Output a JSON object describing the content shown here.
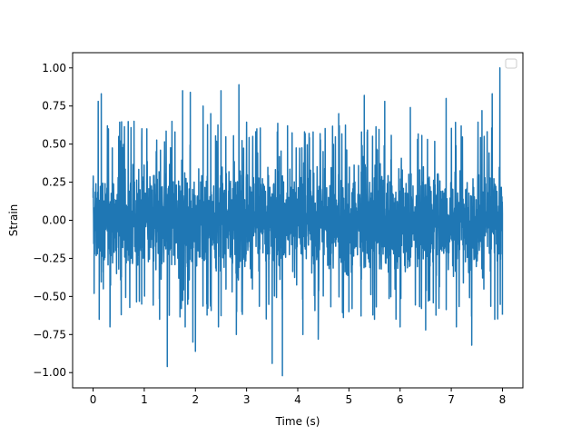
{
  "chart_data": {
    "type": "line",
    "title": "",
    "xlabel": "Time (s)",
    "ylabel": "Strain",
    "xlim": [
      -0.4,
      8.4
    ],
    "ylim": [
      -1.1,
      1.1
    ],
    "xticks": [
      0,
      1,
      2,
      3,
      4,
      5,
      6,
      7,
      8
    ],
    "xtick_labels": [
      "0",
      "1",
      "2",
      "3",
      "4",
      "5",
      "6",
      "7",
      "8"
    ],
    "yticks": [
      -1.0,
      -0.75,
      -0.5,
      -0.25,
      0.0,
      0.25,
      0.5,
      0.75,
      1.0
    ],
    "ytick_labels": [
      "−1.00",
      "−0.75",
      "−0.50",
      "−0.25",
      "0.00",
      "0.25",
      "0.50",
      "0.75",
      "1.00"
    ],
    "grid": false,
    "legend": {
      "position": "top-right",
      "entries": []
    },
    "series": [
      {
        "color": "#1f77b4",
        "style": "dense noisy signal",
        "x_range": [
          0,
          8
        ],
        "typical_range": [
          -0.6,
          0.6
        ],
        "x": [
          0.0,
          0.02,
          0.1,
          0.12,
          0.16,
          0.2,
          0.3,
          0.33,
          0.5,
          0.55,
          0.8,
          0.95,
          1.05,
          1.3,
          1.45,
          1.6,
          1.75,
          1.8,
          1.9,
          1.95,
          2.0,
          2.15,
          2.3,
          2.45,
          2.5,
          2.8,
          2.85,
          3.2,
          3.5,
          3.6,
          3.7,
          3.8,
          4.1,
          4.3,
          4.4,
          4.8,
          5.0,
          5.3,
          5.5,
          5.7,
          6.0,
          6.2,
          6.5,
          6.9,
          7.1,
          7.4,
          7.6,
          7.8,
          7.85,
          7.95,
          8.0
        ],
        "y": [
          0.15,
          -0.48,
          0.78,
          -0.65,
          0.83,
          -0.45,
          0.6,
          -0.7,
          0.55,
          -0.62,
          0.65,
          -0.55,
          0.6,
          -0.65,
          -0.96,
          0.58,
          0.85,
          -0.7,
          0.84,
          -0.8,
          -0.86,
          0.75,
          0.7,
          -0.7,
          0.85,
          -0.75,
          0.89,
          0.6,
          -0.94,
          0.58,
          -1.02,
          0.62,
          -0.75,
          0.58,
          -0.78,
          0.7,
          -0.6,
          0.82,
          -0.65,
          0.78,
          -0.7,
          0.74,
          -0.72,
          0.8,
          -0.7,
          -0.82,
          0.72,
          0.83,
          -0.65,
          1.0,
          -0.62
        ]
      }
    ]
  }
}
